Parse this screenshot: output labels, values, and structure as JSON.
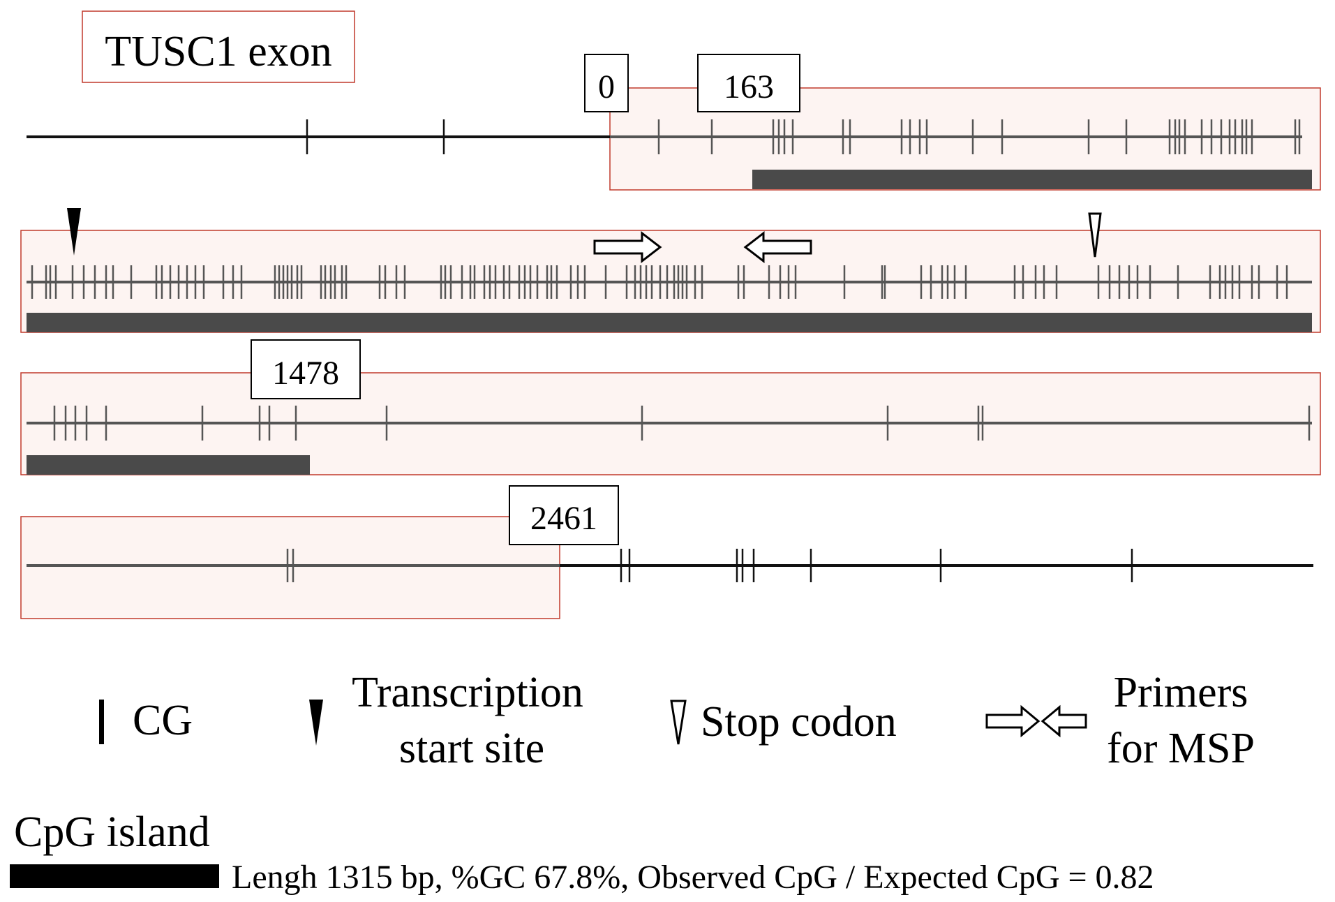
{
  "title": "TUSC1 exon",
  "markers": {
    "m0": "0",
    "m163": "163",
    "m1478": "1478",
    "m2461": "2461"
  },
  "legend": {
    "cg": "CG",
    "tss_line1": "Transcription",
    "tss_line2": "start site",
    "stop": "Stop codon",
    "primers_line1": "Primers",
    "primers_line2": "for MSP",
    "cpg_island": "CpG island",
    "cpg_stats": "Lengh 1315 bp, %GC 67.8%, Observed CpG / Expected CpG = 0.82"
  },
  "colors": {
    "exon_fill": "#fdf4f2",
    "exon_border": "#c0392b",
    "island_bar": "#4a4a4a",
    "line_outside": "#111111",
    "line_inside": "#555555"
  }
}
